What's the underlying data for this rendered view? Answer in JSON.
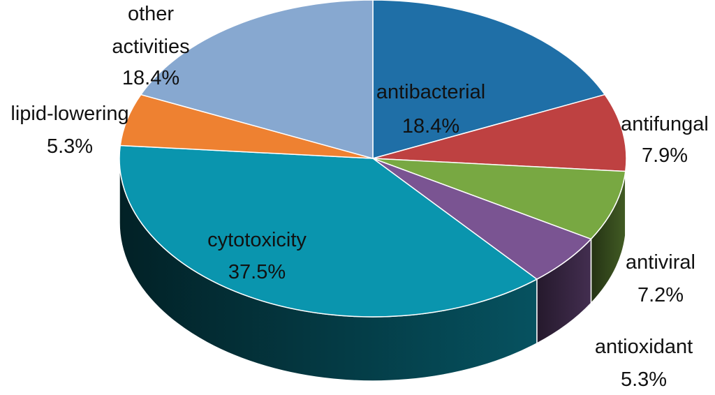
{
  "chart_data": {
    "type": "pie",
    "title": "",
    "three_d": true,
    "legend": "none",
    "slices": [
      {
        "name": "antibacterial",
        "value": 18.4,
        "label": "18.4%",
        "color": "#1f6fa7"
      },
      {
        "name": "antifungal",
        "value": 7.9,
        "label": "7.9%",
        "color": "#be4141"
      },
      {
        "name": "antiviral",
        "value": 7.2,
        "label": "7.2%",
        "color": "#78a842"
      },
      {
        "name": "antioxidant",
        "value": 5.3,
        "label": "5.3%",
        "color": "#7a5492"
      },
      {
        "name": "cytotoxicity",
        "value": 37.5,
        "label": "37.5%",
        "color": "#0a95ae"
      },
      {
        "name": "lipid-lowering",
        "value": 5.3,
        "label": "5.3%",
        "color": "#ee8131"
      },
      {
        "name": "other activities",
        "value": 18.4,
        "label": "18.4%",
        "color": "#87a8d0"
      }
    ]
  }
}
